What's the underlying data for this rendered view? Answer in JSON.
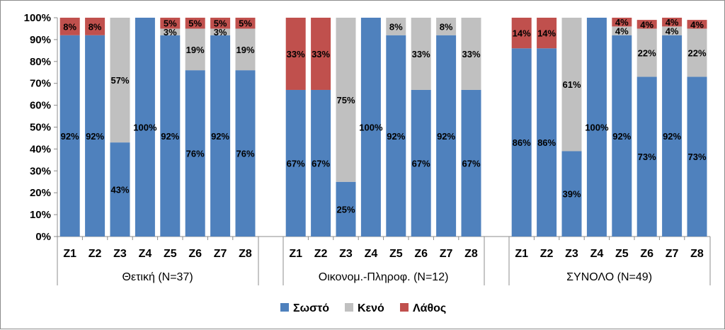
{
  "chart_data": {
    "type": "bar",
    "stacked": true,
    "percent": true,
    "ylim": [
      0,
      100
    ],
    "yticks": [
      "0%",
      "10%",
      "20%",
      "30%",
      "40%",
      "50%",
      "60%",
      "70%",
      "80%",
      "90%",
      "100%"
    ],
    "grid": false,
    "legend_position": "bottom",
    "groups": [
      {
        "label": "Θετική (N=37)",
        "categories": [
          "Z1",
          "Z2",
          "Z3",
          "Z4",
          "Z5",
          "Z6",
          "Z7",
          "Z8"
        ],
        "series": [
          {
            "name": "Σωστό",
            "values": [
              92,
              92,
              43,
              100,
              92,
              76,
              92,
              76
            ],
            "labels": [
              "92%",
              "92%",
              "43%",
              "100%",
              "92%",
              "76%",
              "92%",
              "76%"
            ]
          },
          {
            "name": "Κενό",
            "values": [
              0,
              0,
              57,
              0,
              3,
              19,
              3,
              19
            ],
            "labels": [
              "",
              "",
              "57%",
              "",
              "3%",
              "19%",
              "3%",
              "19%"
            ]
          },
          {
            "name": "Λάθος",
            "values": [
              8,
              8,
              0,
              0,
              5,
              5,
              5,
              5
            ],
            "labels": [
              "8%",
              "8%",
              "",
              "",
              "5%",
              "5%",
              "5%",
              "5%"
            ]
          }
        ]
      },
      {
        "label": "Οικονομ.-Πληροφ. (N=12)",
        "categories": [
          "Z1",
          "Z2",
          "Z3",
          "Z4",
          "Z5",
          "Z6",
          "Z7",
          "Z8"
        ],
        "series": [
          {
            "name": "Σωστό",
            "values": [
              67,
              67,
              25,
              100,
              92,
              67,
              92,
              67
            ],
            "labels": [
              "67%",
              "67%",
              "25%",
              "100%",
              "92%",
              "67%",
              "92%",
              "67%"
            ]
          },
          {
            "name": "Κενό",
            "values": [
              0,
              0,
              75,
              0,
              8,
              33,
              8,
              33
            ],
            "labels": [
              "",
              "",
              "75%",
              "",
              "8%",
              "33%",
              "8%",
              "33%"
            ]
          },
          {
            "name": "Λάθος",
            "values": [
              33,
              33,
              0,
              0,
              0,
              0,
              0,
              0
            ],
            "labels": [
              "33%",
              "33%",
              "",
              "",
              "",
              "",
              "",
              ""
            ]
          }
        ]
      },
      {
        "label": "ΣΥΝΟΛΟ (N=49)",
        "categories": [
          "Z1",
          "Z2",
          "Z3",
          "Z4",
          "Z5",
          "Z6",
          "Z7",
          "Z8"
        ],
        "series": [
          {
            "name": "Σωστό",
            "values": [
              86,
              86,
              39,
              100,
              92,
              73,
              92,
              73
            ],
            "labels": [
              "86%",
              "86%",
              "39%",
              "100%",
              "92%",
              "73%",
              "92%",
              "73%"
            ]
          },
          {
            "name": "Κενό",
            "values": [
              0,
              0,
              61,
              0,
              4,
              22,
              4,
              22
            ],
            "labels": [
              "",
              "",
              "61%",
              "",
              "4%",
              "22%",
              "4%",
              "22%"
            ]
          },
          {
            "name": "Λάθος",
            "values": [
              14,
              14,
              0,
              0,
              4,
              4,
              4,
              4
            ],
            "labels": [
              "14%",
              "14%",
              "",
              "",
              "4%",
              "4%",
              "4%",
              "4%"
            ]
          }
        ]
      }
    ],
    "legend": [
      {
        "name": "Σωστό",
        "color": "#4f81bd"
      },
      {
        "name": "Κενό",
        "color": "#c0c0c0"
      },
      {
        "name": "Λάθος",
        "color": "#c0504d"
      }
    ]
  }
}
